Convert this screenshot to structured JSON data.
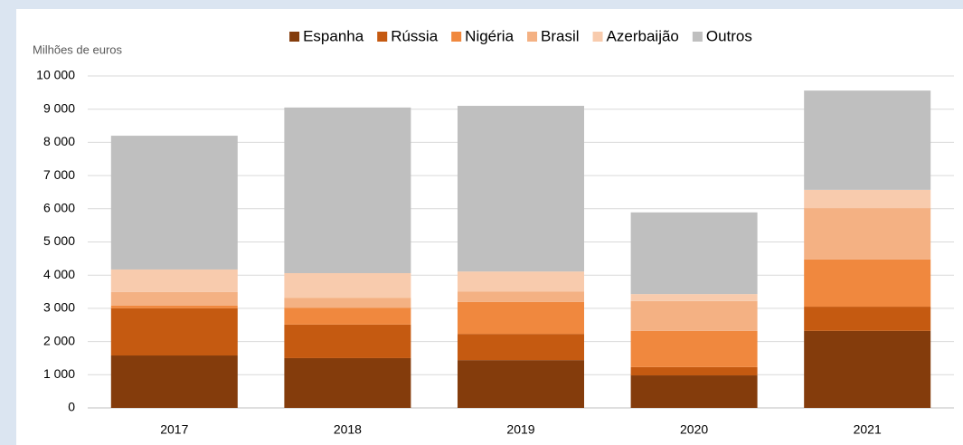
{
  "chart_data": {
    "type": "stacked_bar",
    "y_label": "Milhões de euros",
    "categories": [
      "2017",
      "2018",
      "2019",
      "2020",
      "2021"
    ],
    "series": [
      {
        "name": "Espanha",
        "color": "#843c0c",
        "values": [
          1580,
          1500,
          1440,
          980,
          2320
        ]
      },
      {
        "name": "Rússia",
        "color": "#c55a11",
        "values": [
          1420,
          1010,
          790,
          250,
          730
        ]
      },
      {
        "name": "Nigéria",
        "color": "#f0883e",
        "values": [
          80,
          510,
          960,
          1090,
          1420
        ]
      },
      {
        "name": "Brasil",
        "color": "#f4b183",
        "values": [
          410,
          300,
          320,
          900,
          1550
        ]
      },
      {
        "name": "Azerbaijão",
        "color": "#f8cbad",
        "values": [
          680,
          740,
          600,
          210,
          550
        ]
      },
      {
        "name": "Outros",
        "color": "#bfbfbf",
        "values": [
          4030,
          4990,
          4990,
          2460,
          2990
        ]
      }
    ],
    "ylim": [
      0,
      10000
    ],
    "yticks": [
      0,
      {
        "value": 1000,
        "label": "1 000"
      },
      {
        "value": 2000,
        "label": "2 000"
      },
      {
        "value": 3000,
        "label": "3 000"
      },
      {
        "value": 4000,
        "label": "4 000"
      },
      {
        "value": 5000,
        "label": "5 000"
      },
      {
        "value": 6000,
        "label": "6 000"
      },
      {
        "value": 7000,
        "label": "7 000"
      },
      {
        "value": 8000,
        "label": "8 000"
      },
      {
        "value": 9000,
        "label": "9 000"
      },
      {
        "value": 10000,
        "label": "10 000"
      }
    ],
    "grid": true,
    "legend": "top"
  }
}
